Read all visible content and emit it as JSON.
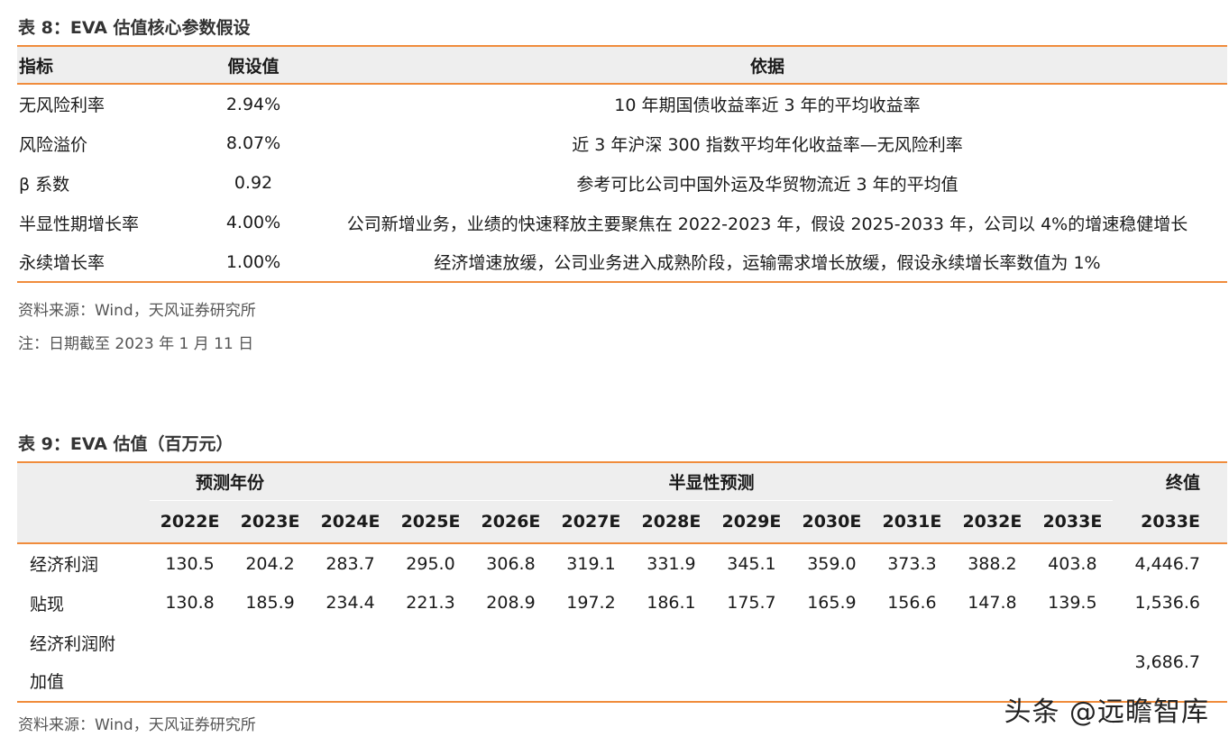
{
  "table8": {
    "title": "表 8：EVA 估值核心参数假设",
    "headers": [
      "指标",
      "假设值",
      "依据"
    ],
    "rows": [
      {
        "name": "无风险利率",
        "value": "2.94%",
        "basis": "10 年期国债收益率近 3 年的平均收益率"
      },
      {
        "name": "风险溢价",
        "value": "8.07%",
        "basis": "近 3 年沪深 300 指数平均年化收益率—无风险利率"
      },
      {
        "name": "β 系数",
        "value": "0.92",
        "basis": "参考可比公司中国外运及华贸物流近 3 年的平均值"
      },
      {
        "name": "半显性期增长率",
        "value": "4.00%",
        "basis": "公司新增业务，业绩的快速释放主要聚焦在 2022-2023 年，假设 2025-2033 年，公司以 4%的增速稳健增长"
      },
      {
        "name": "永续增长率",
        "value": "1.00%",
        "basis": "经济增速放缓，公司业务进入成熟阶段，运输需求增长放缓，假设永续增长率数值为 1%"
      }
    ],
    "source": "资料来源：Wind，天风证券研究所",
    "note": "注：日期截至 2023 年 1 月 11 日"
  },
  "table9": {
    "title": "表 9：EVA 估值（百万元）",
    "group_headers": {
      "forecast": "预测年份",
      "semi": "半显性预测",
      "terminal": "终值"
    },
    "years": [
      "2022E",
      "2023E",
      "2024E",
      "2025E",
      "2026E",
      "2027E",
      "2028E",
      "2029E",
      "2030E",
      "2031E",
      "2032E",
      "2033E"
    ],
    "terminal_year": "2033E",
    "rows": [
      {
        "label": "经济利润",
        "values": [
          "130.5",
          "204.2",
          "283.7",
          "295.0",
          "306.8",
          "319.1",
          "331.9",
          "345.1",
          "359.0",
          "373.3",
          "388.2",
          "403.8"
        ],
        "terminal": "4,446.7"
      },
      {
        "label": "贴现",
        "values": [
          "130.8",
          "185.9",
          "234.4",
          "221.3",
          "208.9",
          "197.2",
          "186.1",
          "175.7",
          "165.9",
          "156.6",
          "147.8",
          "139.5"
        ],
        "terminal": "1,536.6"
      }
    ],
    "last_row": {
      "label_line1": "经济利润附",
      "label_line2": "加值",
      "terminal": "3,686.7"
    },
    "source": "资料来源：Wind，天风证券研究所"
  },
  "watermark": "头条 @远瞻智库"
}
